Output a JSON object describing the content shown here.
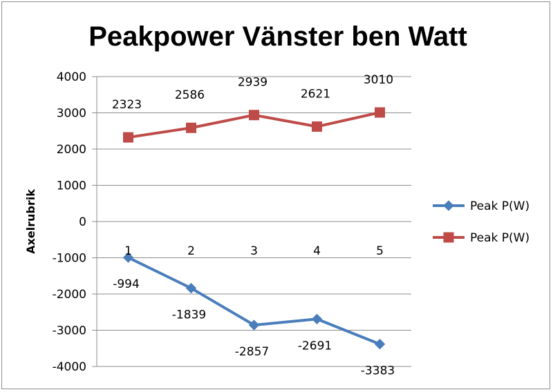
{
  "chart_data": {
    "type": "line",
    "title": "Peakpower Vänster ben Watt",
    "xlabel": "",
    "ylabel": "Axelrubrik",
    "ylim": [
      -4000,
      4000
    ],
    "yticks": [
      4000,
      3000,
      2000,
      1000,
      0,
      -1000,
      -2000,
      -3000,
      -4000
    ],
    "categories": [
      "1",
      "2",
      "3",
      "4",
      "5"
    ],
    "grid": true,
    "legend_position": "right",
    "series": [
      {
        "name": "Peak P(W)",
        "values": [
          -994,
          -1839,
          -2857,
          -2691,
          -3383
        ],
        "labels": [
          "-994",
          "-1839",
          "-2857",
          "-2691",
          "-3383"
        ],
        "color": "#4a7ebb",
        "marker": "diamond"
      },
      {
        "name": "Peak P(W)",
        "values": [
          2323,
          2586,
          2939,
          2621,
          3010
        ],
        "labels": [
          "2323",
          "2586",
          "2939",
          "2621",
          "3010"
        ],
        "color": "#be4b48",
        "marker": "square"
      }
    ]
  }
}
